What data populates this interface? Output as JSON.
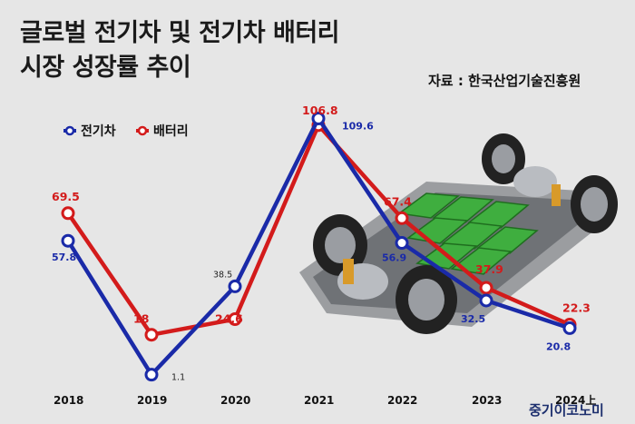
{
  "header": {
    "title_line1": "글로벌 전기차 및 전기차 배터리",
    "title_line2": "시장 성장률 추이",
    "source": "자료 : 한국산업기술진흥원"
  },
  "watermark": "중기이코노미",
  "colors": {
    "ev": "#1a2aa8",
    "battery": "#d31b1b",
    "background": "#e6e6e6"
  },
  "chart_data": {
    "type": "line",
    "title": "글로벌 전기차 및 전기차 배터리 시장 성장률 추이",
    "x": [
      "2018",
      "2019",
      "2020",
      "2021",
      "2022",
      "2023",
      "2024上"
    ],
    "series": [
      {
        "name": "전기차",
        "values": [
          57.8,
          1.1,
          38.5,
          109.6,
          56.9,
          32.5,
          20.8
        ]
      },
      {
        "name": "배터리",
        "values": [
          69.5,
          18,
          24.6,
          106.8,
          67.4,
          37.9,
          22.3
        ]
      }
    ],
    "legend": "top-left",
    "grid": false,
    "value_labels": {
      "ev": [
        "57.8",
        "1.1",
        "38.5",
        "109.6",
        "56.9",
        "32.5",
        "20.8"
      ],
      "battery": [
        "69.5",
        "18",
        "24.6",
        "106.8",
        "67.4",
        "37.9",
        "22.3"
      ]
    }
  }
}
